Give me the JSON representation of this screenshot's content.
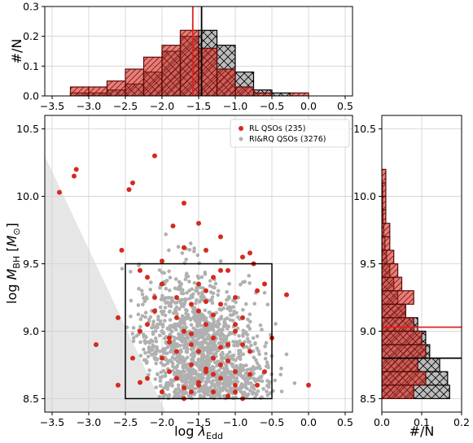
{
  "chart_data": [
    {
      "type": "histogram",
      "panel": "top",
      "ylabel": "#/N",
      "xlim": [
        -3.6,
        0.6
      ],
      "ylim": [
        0,
        0.3
      ],
      "xticks": [
        "−3.5",
        "−3.0",
        "−2.5",
        "−2.0",
        "−1.5",
        "−1.0",
        "−0.5",
        "0.0",
        "0.5"
      ],
      "yticks": [
        "0.0",
        "0.1",
        "0.2",
        "0.3"
      ],
      "bin_edges": [
        -3.5,
        -3.25,
        -3.0,
        -2.75,
        -2.5,
        -2.25,
        -2.0,
        -1.75,
        -1.5,
        -1.25,
        -1.0,
        -0.75,
        -0.5,
        -0.25,
        0.0
      ],
      "series": [
        {
          "name": "RL QSOs (235)",
          "color": "#d42a1e",
          "values": [
            0.0,
            0.03,
            0.03,
            0.05,
            0.09,
            0.13,
            0.17,
            0.22,
            0.16,
            0.09,
            0.03,
            0.01,
            0.0,
            0.01
          ]
        },
        {
          "name": "RI&RQ QSOs (3276)",
          "color": "#b0b0b0",
          "values": [
            0.0,
            0.01,
            0.01,
            0.02,
            0.04,
            0.08,
            0.15,
            0.2,
            0.22,
            0.17,
            0.08,
            0.02,
            0.01,
            0.0
          ]
        }
      ],
      "median_lines": [
        {
          "series": "RL QSOs (235)",
          "x": -1.58,
          "color": "#e02020"
        },
        {
          "series": "RI&RQ QSOs (3276)",
          "x": -1.46,
          "color": "#000000"
        }
      ]
    },
    {
      "type": "scatter",
      "panel": "main",
      "xlabel": "log λ_Edd",
      "ylabel": "log M_BH [M⊙]",
      "xlim": [
        -3.6,
        0.6
      ],
      "ylim": [
        8.4,
        10.6
      ],
      "xticks": [
        "−3.5",
        "−3.0",
        "−2.5",
        "−2.0",
        "−1.5",
        "−1.0",
        "−0.5",
        "0.0",
        "0.5"
      ],
      "yticks": [
        "8.5",
        "9.0",
        "9.5",
        "10.0",
        "10.5"
      ],
      "grid": true,
      "legend": {
        "placement": "top-right",
        "entries": [
          "RL QSOs (235)",
          "RI&RQ QSOs (3276)"
        ]
      },
      "box": {
        "x": [
          -2.5,
          -0.5
        ],
        "y": [
          8.5,
          9.5
        ]
      },
      "excluded_region": [
        [
          -3.6,
          10.3
        ],
        [
          -3.6,
          8.4
        ],
        [
          -1.95,
          8.4
        ]
      ],
      "series": [
        {
          "name": "RL QSOs (235)",
          "color": "#d42a1e",
          "x": [
            -3.2,
            -3.17,
            -2.1,
            -2.45,
            -2.4,
            -1.7,
            -1.5,
            -1.7,
            -2.55,
            -0.8,
            -0.9,
            -2.0,
            -2.3,
            -3.4,
            -1.85,
            -0.6,
            -2.2,
            -0.75,
            -2.6,
            -1.1,
            -0.7,
            -1.0,
            -1.3,
            -1.4,
            -2.0,
            -1.2,
            -2.1,
            -1.6,
            -1.5,
            -1.8,
            -2.2,
            -0.9,
            -1.0,
            -1.4,
            -2.3,
            -1.7,
            -1.3,
            -1.9,
            -1.6,
            -0.5,
            -1.1,
            -1.5,
            -1.8,
            -2.0,
            -1.3,
            -0.8,
            -1.2,
            -2.4,
            -1.0,
            -1.6,
            -1.9,
            -1.4,
            -2.9,
            -0.3,
            -1.2,
            -1.8,
            -1.0,
            -2.2,
            -0.7,
            -1.5,
            -1.3,
            -1.6,
            -2.0,
            -1.1,
            -1.7,
            -0.9,
            -1.4,
            -1.2,
            -2.1,
            -1.5,
            -0.9,
            -1.8,
            -1.0,
            -1.3,
            -1.6,
            -1.9,
            -1.2,
            -1.4,
            -0.8,
            -1.5,
            -1.7,
            -2.3,
            -1.1,
            -1.3,
            -2.6,
            -1.0,
            -0.6,
            0.0,
            -1.4,
            -1.2
          ],
          "y": [
            10.15,
            10.2,
            10.3,
            10.05,
            10.1,
            9.95,
            9.8,
            9.62,
            9.6,
            9.58,
            9.55,
            9.52,
            9.45,
            10.03,
            9.78,
            9.35,
            9.4,
            9.5,
            9.1,
            9.45,
            9.3,
            9.25,
            9.4,
            9.3,
            9.35,
            9.2,
            9.25,
            9.2,
            9.15,
            9.1,
            9.05,
            9.1,
            9.0,
            9.05,
            9.0,
            9.0,
            8.95,
            8.95,
            8.9,
            8.95,
            8.9,
            8.85,
            8.85,
            8.8,
            8.8,
            8.85,
            8.75,
            8.8,
            8.7,
            8.75,
            8.7,
            8.7,
            8.9,
            9.27,
            8.65,
            8.65,
            8.6,
            8.65,
            8.6,
            8.6,
            8.55,
            8.55,
            8.55,
            8.52,
            8.5,
            8.5,
            9.22,
            9.45,
            9.15,
            9.35,
            8.9,
            9.25,
            9.05,
            9.12,
            8.98,
            8.92,
            8.88,
            8.72,
            8.68,
            8.62,
            8.58,
            8.62,
            8.78,
            8.68,
            8.6,
            8.55,
            8.7,
            8.6,
            9.6,
            9.7
          ]
        },
        {
          "name": "RI&RQ QSOs (3276)",
          "color": "#b0b0b0",
          "x": [],
          "y": []
        }
      ]
    },
    {
      "type": "histogram",
      "panel": "right",
      "orientation": "horizontal",
      "xlabel": "#/N",
      "xlim": [
        0,
        0.2
      ],
      "ylim": [
        8.4,
        10.6
      ],
      "xticks": [
        "0.0",
        "0.1",
        "0.2"
      ],
      "yticks": [
        "8.5",
        "9.0",
        "9.5",
        "10.0",
        "10.5"
      ],
      "bin_edges": [
        8.5,
        8.6,
        8.7,
        8.8,
        8.9,
        9.0,
        9.1,
        9.2,
        9.3,
        9.4,
        9.5,
        9.6,
        9.7,
        9.8,
        9.9,
        10.0,
        10.1,
        10.2
      ],
      "series": [
        {
          "name": "RL QSOs (235)",
          "color": "#d42a1e",
          "values": [
            0.08,
            0.11,
            0.09,
            0.11,
            0.1,
            0.08,
            0.06,
            0.08,
            0.05,
            0.04,
            0.03,
            0.02,
            0.02,
            0.01,
            0.01,
            0.01,
            0.01
          ]
        },
        {
          "name": "RI&RQ QSOs (3276)",
          "color": "#b0b0b0",
          "values": [
            0.17,
            0.165,
            0.145,
            0.12,
            0.11,
            0.09,
            0.06,
            0.04,
            0.03,
            0.02,
            0.012,
            0.008,
            0.005,
            0.003,
            0.002,
            0.002,
            0.0
          ]
        }
      ],
      "median_lines": [
        {
          "series": "RL QSOs (235)",
          "y": 9.03,
          "color": "#e02020"
        },
        {
          "series": "RI&RQ QSOs (3276)",
          "y": 8.8,
          "color": "#000000"
        }
      ]
    }
  ]
}
